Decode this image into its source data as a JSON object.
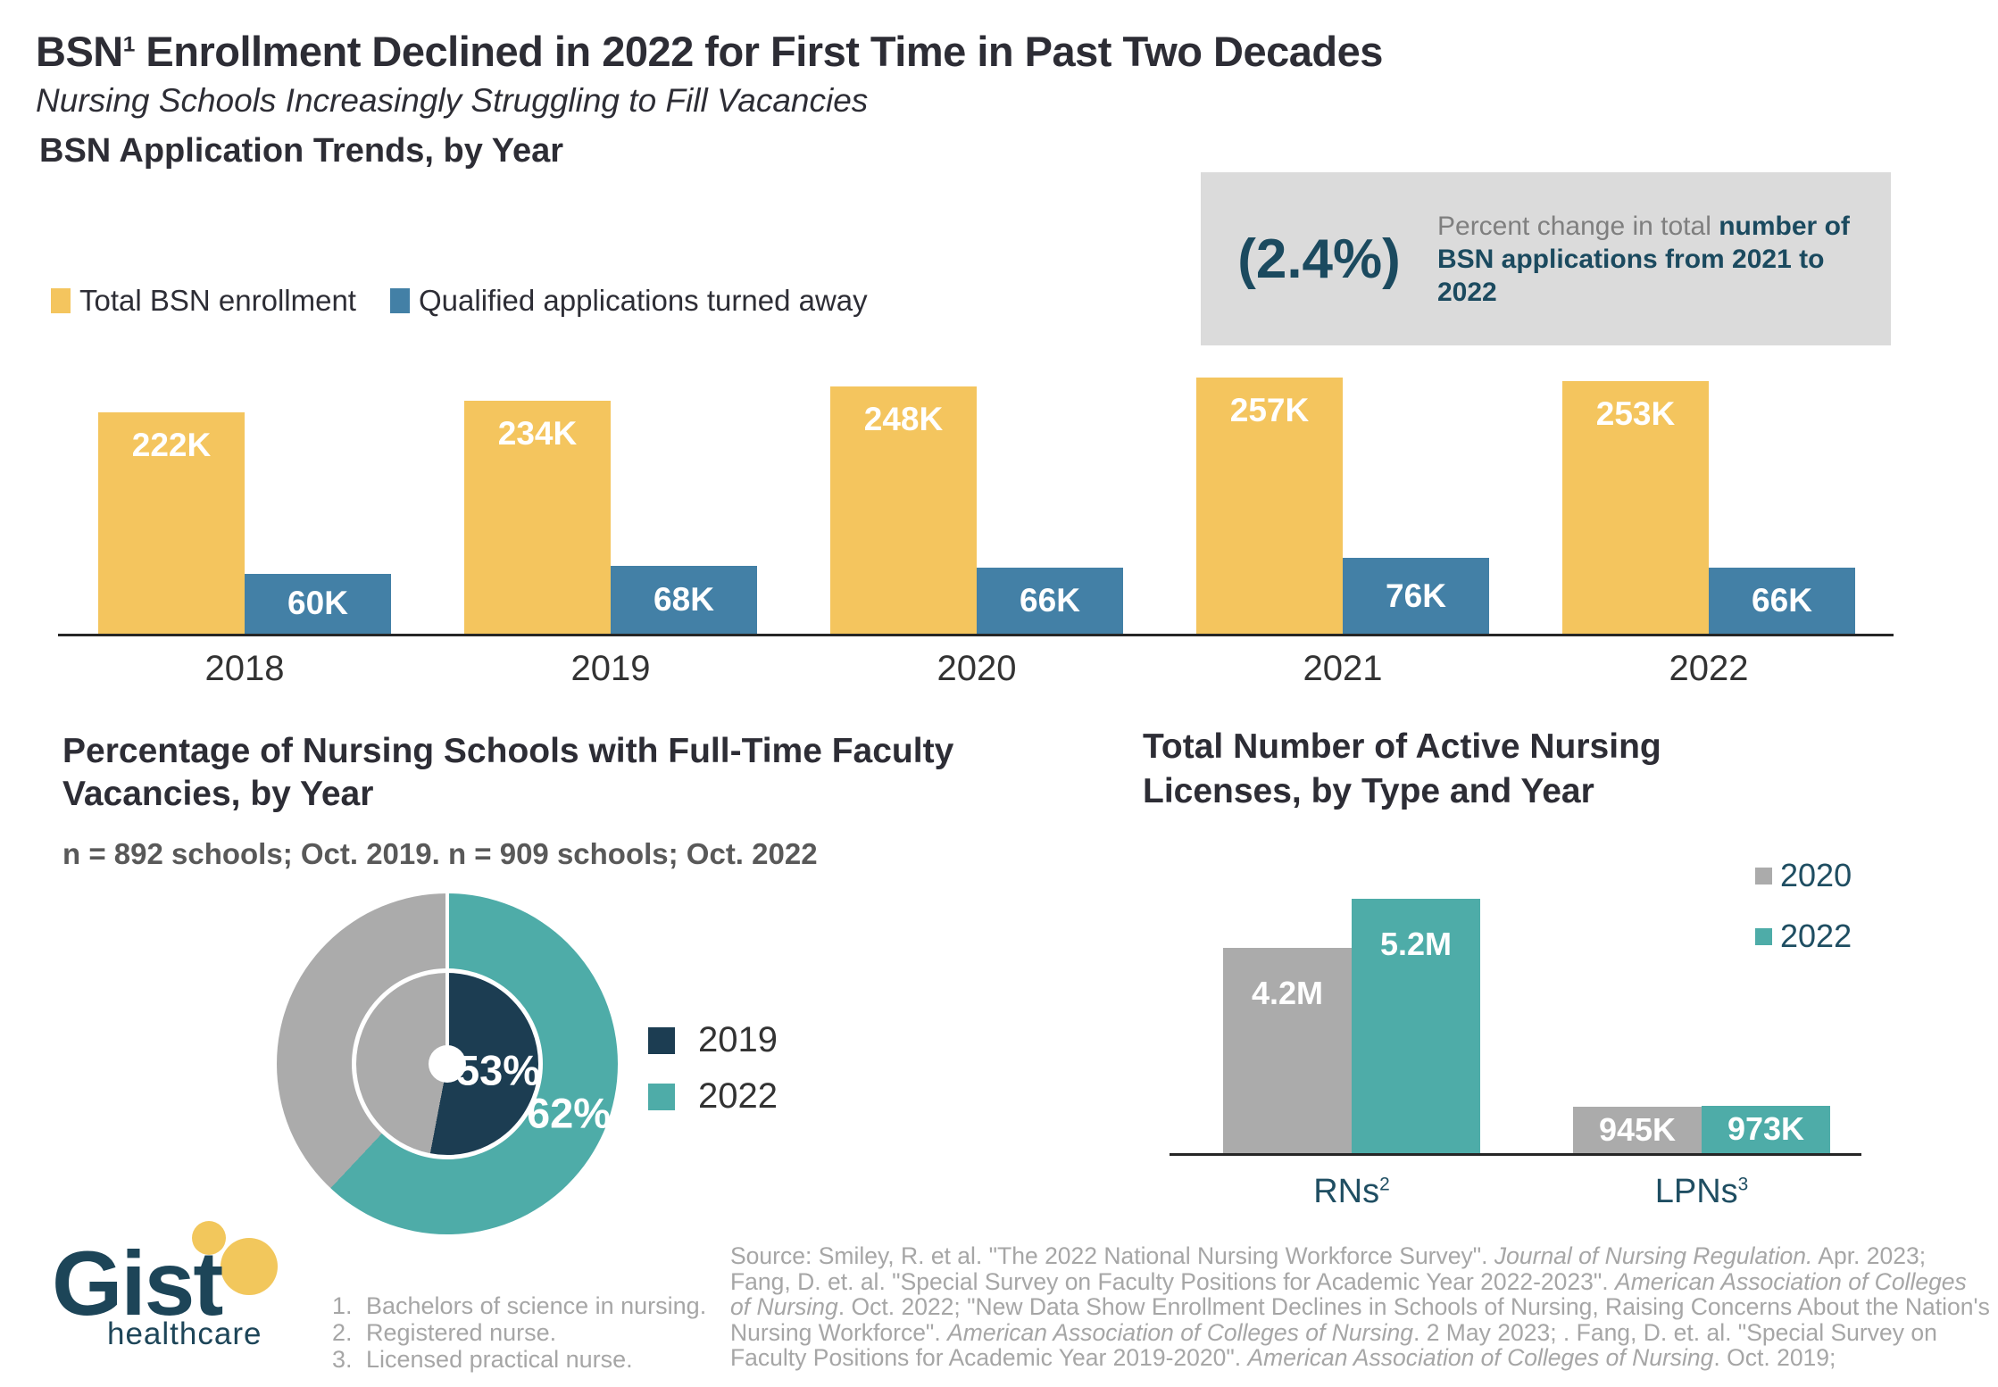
{
  "header": {
    "title_prefix": "BSN",
    "title_sup": "1",
    "title_rest": " Enrollment Declined in 2022 for First Time in Past Two Decades",
    "subtitle": "Nursing Schools Increasingly Struggling to Fill Vacancies"
  },
  "callout": {
    "value": "(2.4%)",
    "desc_gray": "Percent change in total",
    "desc_bold": "number of BSN applications from 2021 to 2022"
  },
  "chart_data": [
    {
      "type": "bar",
      "title": "BSN Application Trends, by Year",
      "categories": [
        "2018",
        "2019",
        "2020",
        "2021",
        "2022"
      ],
      "series": [
        {
          "name": "Total BSN enrollment",
          "color": "#F4C55E",
          "values": [
            222,
            234,
            248,
            257,
            253
          ],
          "labels": [
            "222K",
            "234K",
            "248K",
            "257K",
            "253K"
          ]
        },
        {
          "name": "Qualified applications turned away",
          "color": "#4380A6",
          "values": [
            60,
            68,
            66,
            76,
            66
          ],
          "labels": [
            "60K",
            "68K",
            "66K",
            "76K",
            "66K"
          ]
        }
      ],
      "unit": "thousands of applications",
      "ylim": [
        0,
        260
      ],
      "grid": false,
      "legend_position": "top-left"
    },
    {
      "type": "pie",
      "title": "Percentage of Nursing Schools with Full-Time Faculty Vacancies, by Year",
      "note": "n = 892  schools; Oct. 2019. n = 909 schools; Oct. 2022",
      "series": [
        {
          "name": "2019",
          "value": 53,
          "label": "53%",
          "color": "#1C3D52",
          "ring": "inner",
          "remainder_color": "#ABABAB"
        },
        {
          "name": "2022",
          "value": 62,
          "label": "62%",
          "color": "#4EACA8",
          "ring": "outer",
          "remainder_color": "#ABABAB"
        }
      ],
      "unit": "percent",
      "legend_position": "right"
    },
    {
      "type": "bar",
      "title": "Total Number of Active Nursing Licenses, by Type and Year",
      "categories": [
        "RNs",
        "LPNs"
      ],
      "category_sups": [
        "2",
        "3"
      ],
      "series": [
        {
          "name": "2020",
          "color": "#ABABAB",
          "values": [
            4.2,
            0.945
          ],
          "labels": [
            "4.2M",
            "945K"
          ]
        },
        {
          "name": "2022",
          "color": "#4EACA8",
          "values": [
            5.2,
            0.973
          ],
          "labels": [
            "5.2M",
            "973K"
          ]
        }
      ],
      "unit": "millions of licenses",
      "ylim": [
        0,
        5.2
      ],
      "grid": false,
      "legend_position": "top-right"
    }
  ],
  "footer": {
    "logo_name": "Gist",
    "logo_tagline": "healthcare",
    "footnotes": [
      "Bachelors of science in nursing.",
      "Registered nurse.",
      "Licensed practical nurse."
    ],
    "source_segments": [
      {
        "text": "Source: Smiley, R. et al. \"The 2022 National Nursing Workforce Survey\". ",
        "italic": false
      },
      {
        "text": "Journal of Nursing Regulation.",
        "italic": true
      },
      {
        "text": " Apr. 2023; Fang, D. et. al. \"Special Survey on Faculty Positions for Academic Year 2022-2023\".  ",
        "italic": false
      },
      {
        "text": "American Association of Colleges of Nursing",
        "italic": true
      },
      {
        "text": ". Oct. 2022; \"New Data Show Enrollment Declines in Schools of Nursing, Raising Concerns About the Nation's Nursing Workforce\". ",
        "italic": false
      },
      {
        "text": "American Association of Colleges of Nursing",
        "italic": true
      },
      {
        "text": ". 2 May 2023; . Fang, D. et. al. \"Special Survey on Faculty Positions for Academic Year 2019-2020\".  ",
        "italic": false
      },
      {
        "text": "American Association of Colleges of Nursing",
        "italic": true
      },
      {
        "text": ". Oct. 2019;",
        "italic": false
      }
    ]
  },
  "colors": {
    "yellow": "#F4C55E",
    "blue": "#4380A6",
    "teal": "#4EACA8",
    "navy": "#1C3D52",
    "gray": "#ABABAB",
    "callout_bg": "#DBDBDB",
    "accent_dark": "#1B4A5F",
    "text_dark": "#2D2D35",
    "text_gray": "#A6A6A6",
    "axis": "#262626"
  }
}
